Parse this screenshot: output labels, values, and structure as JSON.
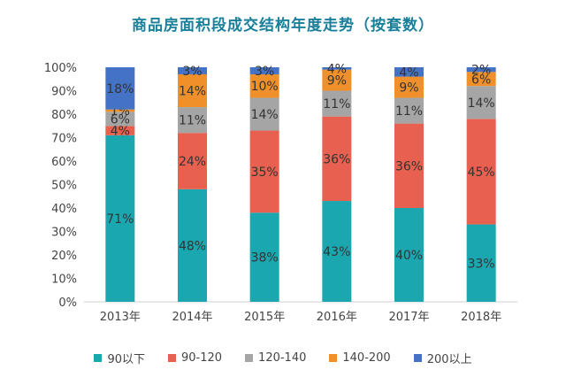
{
  "chart_data": {
    "type": "bar",
    "stacked": true,
    "title": "商品房面积段成交结构年度走势（按套数）",
    "categories": [
      "2013年",
      "2014年",
      "2015年",
      "2016年",
      "2017年",
      "2018年"
    ],
    "series": [
      {
        "name": "90以下",
        "color": "#1aa7b0",
        "values": [
          71,
          48,
          38,
          43,
          40,
          33
        ]
      },
      {
        "name": "90-120",
        "color": "#e8604f",
        "values": [
          4,
          24,
          35,
          36,
          36,
          45
        ]
      },
      {
        "name": "120-140",
        "color": "#a5a5a5",
        "values": [
          6,
          11,
          14,
          11,
          11,
          14
        ]
      },
      {
        "name": "140-200",
        "color": "#f0902b",
        "values": [
          1,
          14,
          10,
          9,
          9,
          6
        ]
      },
      {
        "name": "200以上",
        "color": "#4472c4",
        "values": [
          18,
          3,
          3,
          4,
          4,
          2
        ]
      }
    ],
    "ylim": [
      0,
      100
    ],
    "yticks": [
      "0%",
      "10%",
      "20%",
      "30%",
      "40%",
      "50%",
      "60%",
      "70%",
      "80%",
      "90%",
      "100%"
    ],
    "grid": false,
    "legend": "bottom"
  }
}
